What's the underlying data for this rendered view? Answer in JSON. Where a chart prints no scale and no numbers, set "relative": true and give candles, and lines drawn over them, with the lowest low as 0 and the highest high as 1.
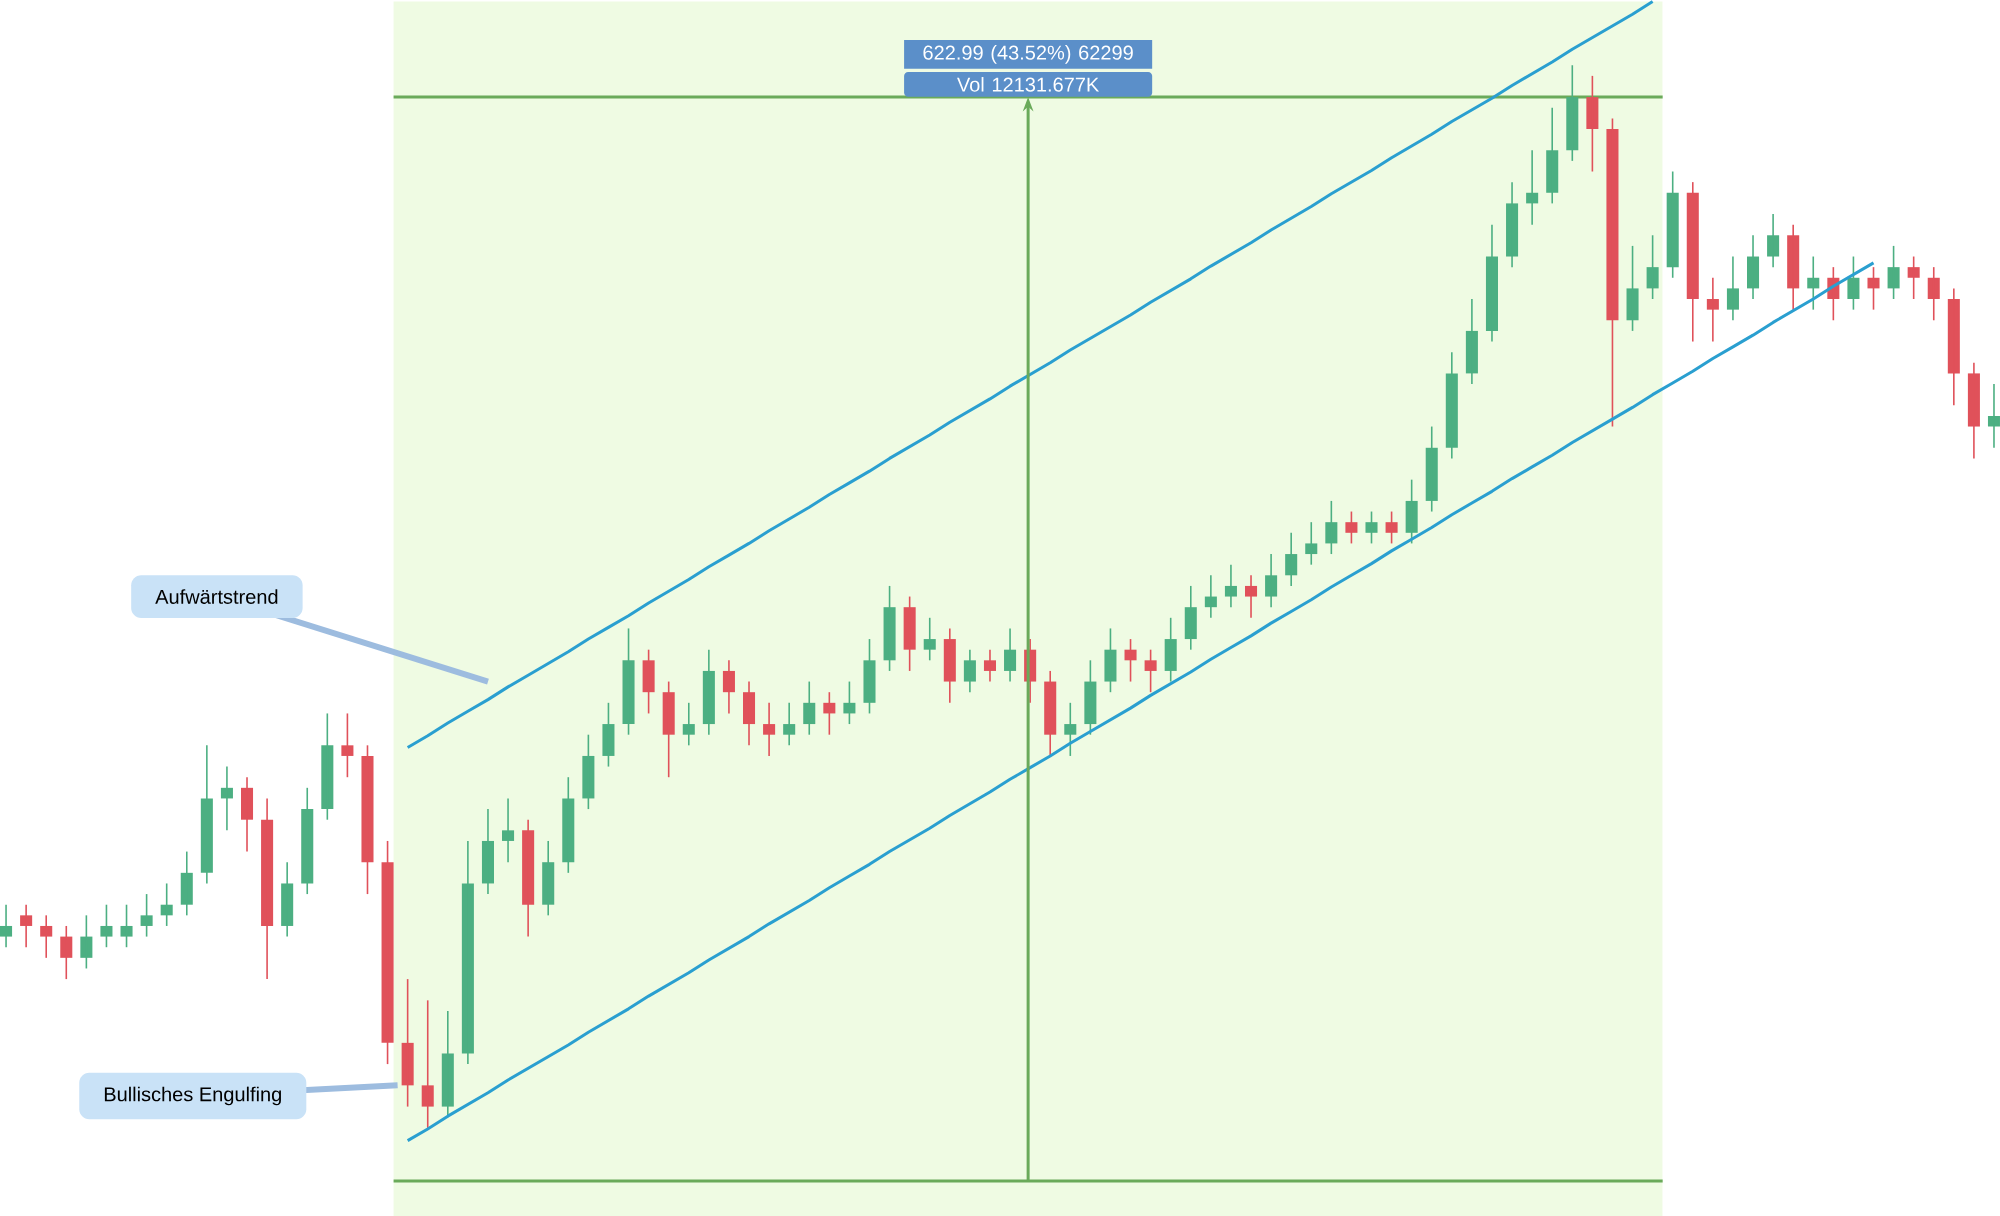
{
  "chart_data": {
    "type": "candlestick",
    "relative": true,
    "categories": [
      null,
      null,
      null,
      null,
      null,
      null,
      null,
      null,
      null,
      null,
      null,
      null,
      null,
      null,
      null,
      null,
      null,
      null,
      null,
      null,
      null,
      null,
      null,
      null,
      null,
      null,
      null,
      null,
      null,
      null,
      null,
      null,
      null,
      null,
      null,
      null,
      null,
      null,
      null,
      null,
      null,
      null,
      null,
      null,
      null,
      null,
      null,
      null,
      null,
      null,
      null,
      null,
      null,
      null,
      null,
      null,
      null,
      null,
      null,
      null,
      null,
      null,
      null,
      null,
      null,
      null,
      null,
      null,
      null,
      null,
      null,
      null,
      null,
      null,
      null,
      null,
      null,
      null,
      null,
      null,
      null,
      null,
      null,
      null,
      null,
      null,
      null,
      null,
      null,
      null,
      null,
      null,
      null,
      null,
      null,
      null,
      null,
      null,
      null,
      null
    ],
    "colors": [
      "#4caf82",
      "#e0515a",
      "#e0515a",
      "#e0515a",
      "#4caf82",
      "#4caf82",
      "#4caf82",
      "#4caf82",
      "#4caf82",
      "#4caf82",
      "#4caf82",
      "#4caf82",
      "#e0515a",
      "#e0515a",
      "#4caf82",
      "#4caf82",
      "#4caf82",
      "#e0515a",
      "#e0515a",
      "#e0515a",
      "#e0515a",
      "#e0515a",
      "#4caf82",
      "#4caf82",
      "#4caf82",
      "#4caf82",
      "#e0515a",
      "#4caf82",
      "#4caf82",
      "#4caf82",
      "#4caf82",
      "#4caf82",
      "#e0515a",
      "#e0515a",
      "#4caf82",
      "#4caf82",
      "#e0515a",
      "#e0515a",
      "#e0515a",
      "#4caf82",
      "#4caf82",
      "#e0515a",
      "#4caf82",
      "#4caf82",
      "#4caf82",
      "#e0515a",
      "#4caf82",
      "#e0515a",
      "#4caf82",
      "#e0515a",
      "#4caf82",
      "#e0515a",
      "#e0515a",
      "#4caf82",
      "#4caf82",
      "#4caf82",
      "#e0515a",
      "#e0515a",
      "#4caf82",
      "#4caf82",
      "#4caf82",
      "#4caf82",
      "#e0515a",
      "#4caf82",
      "#4caf82",
      "#4caf82",
      "#4caf82",
      "#e0515a",
      "#4caf82",
      "#e0515a",
      "#4caf82",
      "#4caf82",
      "#4caf82",
      "#4caf82",
      "#4caf82",
      "#4caf82",
      "#4caf82",
      "#4caf82",
      "#4caf82",
      "#e0515a",
      "#e0515a",
      "#4caf82",
      "#4caf82",
      "#4caf82",
      "#e0515a",
      "#e0515a",
      "#4caf82",
      "#4caf82",
      "#4caf82",
      "#e0515a",
      "#4caf82",
      "#e0515a",
      "#4caf82",
      "#e0515a",
      "#4caf82",
      "#e0515a",
      "#e0515a",
      "#e0515a",
      "#e0515a",
      "#4caf82"
    ],
    "ohlc": [
      [
        0.18,
        0.21,
        0.17,
        0.19
      ],
      [
        0.2,
        0.21,
        0.17,
        0.19
      ],
      [
        0.19,
        0.2,
        0.16,
        0.18
      ],
      [
        0.18,
        0.19,
        0.14,
        0.16
      ],
      [
        0.16,
        0.2,
        0.15,
        0.18
      ],
      [
        0.18,
        0.21,
        0.17,
        0.19
      ],
      [
        0.18,
        0.21,
        0.17,
        0.19
      ],
      [
        0.19,
        0.22,
        0.18,
        0.2
      ],
      [
        0.2,
        0.23,
        0.19,
        0.21
      ],
      [
        0.21,
        0.26,
        0.2,
        0.24
      ],
      [
        0.24,
        0.36,
        0.23,
        0.31
      ],
      [
        0.31,
        0.34,
        0.28,
        0.32
      ],
      [
        0.32,
        0.33,
        0.26,
        0.29
      ],
      [
        0.29,
        0.31,
        0.14,
        0.19
      ],
      [
        0.19,
        0.25,
        0.18,
        0.23
      ],
      [
        0.23,
        0.32,
        0.22,
        0.3
      ],
      [
        0.3,
        0.39,
        0.29,
        0.36
      ],
      [
        0.36,
        0.39,
        0.33,
        0.35
      ],
      [
        0.35,
        0.36,
        0.22,
        0.25
      ],
      [
        0.25,
        0.27,
        0.06,
        0.08
      ],
      [
        0.08,
        0.14,
        0.02,
        0.04
      ],
      [
        0.04,
        0.12,
        0.0,
        0.02
      ],
      [
        0.02,
        0.11,
        0.01,
        0.07
      ],
      [
        0.07,
        0.27,
        0.06,
        0.23
      ],
      [
        0.23,
        0.3,
        0.22,
        0.27
      ],
      [
        0.27,
        0.31,
        0.25,
        0.28
      ],
      [
        0.28,
        0.29,
        0.18,
        0.21
      ],
      [
        0.21,
        0.27,
        0.2,
        0.25
      ],
      [
        0.25,
        0.33,
        0.24,
        0.31
      ],
      [
        0.31,
        0.37,
        0.3,
        0.35
      ],
      [
        0.35,
        0.4,
        0.34,
        0.38
      ],
      [
        0.38,
        0.47,
        0.37,
        0.44
      ],
      [
        0.44,
        0.45,
        0.39,
        0.41
      ],
      [
        0.41,
        0.42,
        0.33,
        0.37
      ],
      [
        0.37,
        0.4,
        0.36,
        0.38
      ],
      [
        0.38,
        0.45,
        0.37,
        0.43
      ],
      [
        0.43,
        0.44,
        0.39,
        0.41
      ],
      [
        0.41,
        0.42,
        0.36,
        0.38
      ],
      [
        0.38,
        0.4,
        0.35,
        0.37
      ],
      [
        0.37,
        0.4,
        0.36,
        0.38
      ],
      [
        0.38,
        0.42,
        0.37,
        0.4
      ],
      [
        0.4,
        0.41,
        0.37,
        0.39
      ],
      [
        0.39,
        0.42,
        0.38,
        0.4
      ],
      [
        0.4,
        0.46,
        0.39,
        0.44
      ],
      [
        0.44,
        0.51,
        0.43,
        0.49
      ],
      [
        0.49,
        0.5,
        0.43,
        0.45
      ],
      [
        0.45,
        0.48,
        0.44,
        0.46
      ],
      [
        0.46,
        0.47,
        0.4,
        0.42
      ],
      [
        0.42,
        0.45,
        0.41,
        0.44
      ],
      [
        0.44,
        0.45,
        0.42,
        0.43
      ],
      [
        0.43,
        0.47,
        0.42,
        0.45
      ],
      [
        0.45,
        0.46,
        0.4,
        0.42
      ],
      [
        0.42,
        0.43,
        0.35,
        0.37
      ],
      [
        0.37,
        0.4,
        0.35,
        0.38
      ],
      [
        0.38,
        0.44,
        0.37,
        0.42
      ],
      [
        0.42,
        0.47,
        0.41,
        0.45
      ],
      [
        0.45,
        0.46,
        0.42,
        0.44
      ],
      [
        0.44,
        0.45,
        0.41,
        0.43
      ],
      [
        0.43,
        0.48,
        0.42,
        0.46
      ],
      [
        0.46,
        0.51,
        0.45,
        0.49
      ],
      [
        0.49,
        0.52,
        0.48,
        0.5
      ],
      [
        0.5,
        0.53,
        0.49,
        0.51
      ],
      [
        0.51,
        0.52,
        0.48,
        0.5
      ],
      [
        0.5,
        0.54,
        0.49,
        0.52
      ],
      [
        0.52,
        0.56,
        0.51,
        0.54
      ],
      [
        0.54,
        0.57,
        0.53,
        0.55
      ],
      [
        0.55,
        0.59,
        0.54,
        0.57
      ],
      [
        0.57,
        0.58,
        0.55,
        0.56
      ],
      [
        0.56,
        0.58,
        0.55,
        0.57
      ],
      [
        0.57,
        0.58,
        0.55,
        0.56
      ],
      [
        0.56,
        0.61,
        0.55,
        0.59
      ],
      [
        0.59,
        0.66,
        0.58,
        0.64
      ],
      [
        0.64,
        0.73,
        0.63,
        0.71
      ],
      [
        0.71,
        0.78,
        0.7,
        0.75
      ],
      [
        0.75,
        0.85,
        0.74,
        0.82
      ],
      [
        0.82,
        0.89,
        0.81,
        0.87
      ],
      [
        0.87,
        0.92,
        0.85,
        0.88
      ],
      [
        0.88,
        0.96,
        0.87,
        0.92
      ],
      [
        0.92,
        1.0,
        0.91,
        0.97
      ],
      [
        0.97,
        0.99,
        0.9,
        0.94
      ],
      [
        0.94,
        0.95,
        0.66,
        0.76
      ],
      [
        0.76,
        0.83,
        0.75,
        0.79
      ],
      [
        0.79,
        0.84,
        0.78,
        0.81
      ],
      [
        0.81,
        0.9,
        0.8,
        0.88
      ],
      [
        0.88,
        0.89,
        0.74,
        0.78
      ],
      [
        0.78,
        0.8,
        0.74,
        0.77
      ],
      [
        0.77,
        0.82,
        0.76,
        0.79
      ],
      [
        0.79,
        0.84,
        0.78,
        0.82
      ],
      [
        0.82,
        0.86,
        0.81,
        0.84
      ],
      [
        0.84,
        0.85,
        0.77,
        0.79
      ],
      [
        0.79,
        0.82,
        0.77,
        0.8
      ],
      [
        0.8,
        0.81,
        0.76,
        0.78
      ],
      [
        0.78,
        0.82,
        0.77,
        0.8
      ],
      [
        0.8,
        0.81,
        0.77,
        0.79
      ],
      [
        0.79,
        0.83,
        0.78,
        0.81
      ],
      [
        0.81,
        0.82,
        0.78,
        0.8
      ],
      [
        0.8,
        0.81,
        0.76,
        0.78
      ],
      [
        0.78,
        0.79,
        0.68,
        0.71
      ],
      [
        0.71,
        0.72,
        0.63,
        0.66
      ],
      [
        0.66,
        0.7,
        0.64,
        0.67
      ]
    ],
    "series": [
      {
        "type": "line",
        "color": "#2a9fd0",
        "values": [
          null,
          null,
          null,
          null,
          null,
          null,
          null,
          null,
          null,
          null,
          null,
          null,
          null,
          null,
          null,
          null,
          null,
          null,
          null,
          null,
          0.358,
          0.369,
          0.381,
          0.392,
          0.403,
          0.415,
          0.426,
          0.437,
          0.448,
          0.46,
          0.471,
          0.482,
          0.494,
          0.505,
          0.516,
          0.528,
          0.539,
          0.55,
          0.562,
          0.573,
          0.584,
          0.596,
          0.607,
          0.618,
          0.63,
          0.641,
          0.652,
          0.664,
          0.675,
          0.686,
          0.698,
          0.709,
          0.72,
          0.732,
          0.743,
          0.754,
          0.765,
          0.777,
          0.788,
          0.799,
          0.811,
          0.822,
          0.833,
          0.845,
          0.856,
          0.867,
          0.879,
          0.89,
          0.901,
          0.913,
          0.924,
          0.935,
          0.947,
          0.958,
          0.969,
          0.981,
          0.992,
          1.003,
          1.015,
          1.026,
          1.037,
          1.048,
          1.06,
          null,
          null,
          null,
          null,
          null,
          null,
          null,
          null,
          null,
          null,
          null,
          null,
          null,
          null,
          null,
          null,
          null
        ]
      },
      {
        "type": "line",
        "color": "#2a9fd0",
        "values": [
          null,
          null,
          null,
          null,
          null,
          null,
          null,
          null,
          null,
          null,
          null,
          null,
          null,
          null,
          null,
          null,
          null,
          null,
          null,
          null,
          -0.012,
          -0.001,
          0.011,
          0.022,
          0.033,
          0.045,
          0.056,
          0.067,
          0.078,
          0.09,
          0.101,
          0.112,
          0.124,
          0.135,
          0.146,
          0.158,
          0.169,
          0.18,
          0.192,
          0.203,
          0.214,
          0.226,
          0.237,
          0.248,
          0.26,
          0.271,
          0.282,
          0.294,
          0.305,
          0.316,
          0.328,
          0.339,
          0.35,
          0.362,
          0.373,
          0.384,
          0.395,
          0.407,
          0.418,
          0.429,
          0.441,
          0.452,
          0.463,
          0.475,
          0.486,
          0.497,
          0.509,
          0.52,
          0.531,
          0.543,
          0.554,
          0.565,
          0.577,
          0.588,
          0.599,
          0.611,
          0.622,
          0.633,
          0.645,
          0.656,
          0.667,
          0.678,
          0.69,
          0.701,
          0.712,
          0.724,
          0.735,
          0.746,
          0.758,
          0.769,
          0.78,
          0.792,
          0.803,
          0.814,
          null,
          null,
          null,
          null,
          null,
          null
        ]
      }
    ],
    "ref_lines": [
      {
        "axis": "y",
        "value": 0.97,
        "color": "#6aaa5a"
      },
      {
        "axis": "y",
        "value": -0.05,
        "color": "#6aaa5a"
      }
    ],
    "annotations": [
      "622.99 (43.52%) 62299",
      "Vol 12131.677K",
      "Aufwärtstrend",
      "Bullisches Engulfing"
    ]
  }
}
